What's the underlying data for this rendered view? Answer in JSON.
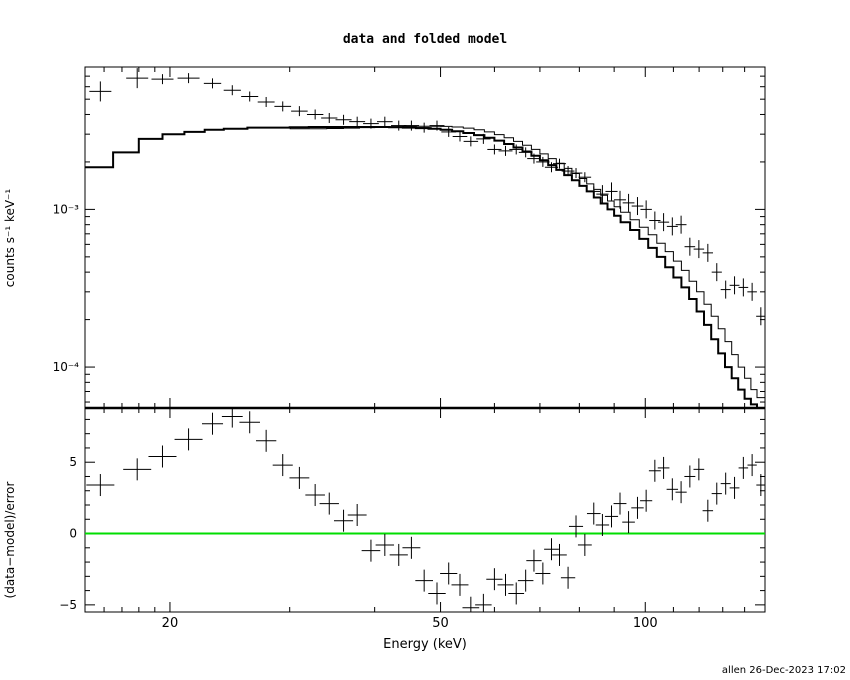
{
  "chart_data": [
    {
      "type": "line",
      "panel": "top",
      "title": "data and folded model",
      "ylabel": "counts s⁻¹ keV⁻¹",
      "yscale": "log",
      "xscale": "log",
      "xlim": [
        15,
        150
      ],
      "ylim": [
        5.5e-05,
        0.008
      ],
      "ytick_labels": [
        "10⁻³",
        "10⁻⁴"
      ],
      "ytick_values": [
        0.001,
        0.0001
      ],
      "data": {
        "x": [
          15.8,
          17.9,
          19.5,
          21.3,
          23.1,
          24.7,
          26.2,
          27.7,
          29.3,
          31.0,
          32.7,
          34.3,
          36.0,
          37.7,
          39.5,
          41.4,
          43.4,
          45.3,
          47.3,
          49.4,
          51.4,
          53.4,
          55.4,
          57.8,
          60.0,
          62.3,
          64.6,
          66.7,
          68.6,
          70.7,
          72.8,
          74.8,
          77.0,
          79.1,
          81.5,
          84.0,
          86.5,
          89.2,
          91.8,
          94.5,
          97.4,
          100.3,
          103.3,
          106.4,
          109.6,
          112.9,
          116.3,
          119.9,
          123.6,
          127.4,
          131.3,
          135.3,
          139.4,
          143.6,
          147.9
        ],
        "y": [
          0.0056,
          0.0068,
          0.0067,
          0.0068,
          0.0063,
          0.0057,
          0.0052,
          0.0048,
          0.0045,
          0.0042,
          0.004,
          0.0038,
          0.0037,
          0.0036,
          0.0035,
          0.0036,
          0.0034,
          0.0034,
          0.0033,
          0.0034,
          0.0031,
          0.0029,
          0.0027,
          0.0028,
          0.0024,
          0.00235,
          0.0024,
          0.0023,
          0.0021,
          0.002,
          0.00185,
          0.00195,
          0.00175,
          0.0017,
          0.0016,
          0.0013,
          0.00125,
          0.0013,
          0.00115,
          0.0011,
          0.00105,
          0.001,
          0.00085,
          0.00083,
          0.00078,
          0.0008,
          0.00058,
          0.00056,
          0.00053,
          0.0004,
          0.00031,
          0.00033,
          0.00032,
          0.0003,
          0.00021
        ]
      },
      "model_series": [
        {
          "style": "thick",
          "x": [
            15.0,
            16.5,
            18.0,
            19.5,
            21.0,
            22.5,
            24.0,
            26.0,
            28.0,
            30.0,
            32.0,
            34.0,
            36.0,
            38.0,
            40.0,
            42.0,
            44.0,
            46.0,
            48.0,
            50.0,
            52.0,
            54.0,
            56.0,
            58.0,
            60.0,
            62.0,
            64.0,
            66.0,
            68.0,
            70.0,
            72.0,
            74.0,
            76.0,
            78.0,
            80.0,
            82.0,
            84.0,
            86.0,
            88.0,
            90.0,
            92.0,
            95.0,
            98.0,
            101.0,
            104.0,
            107.0,
            110.0,
            113.0,
            116.0,
            119.0,
            122.0,
            125.0,
            128.0,
            131.0,
            134.0,
            137.0,
            140.0,
            143.0,
            146.0,
            150.0
          ],
          "y": [
            0.00185,
            0.0023,
            0.0028,
            0.003,
            0.0031,
            0.0032,
            0.00325,
            0.0033,
            0.0033,
            0.00332,
            0.00333,
            0.00333,
            0.00333,
            0.00333,
            0.00333,
            0.00332,
            0.0033,
            0.00328,
            0.00325,
            0.0032,
            0.00313,
            0.00305,
            0.00296,
            0.00285,
            0.00273,
            0.0026,
            0.00247,
            0.00233,
            0.00219,
            0.00205,
            0.00191,
            0.00178,
            0.00165,
            0.00153,
            0.00141,
            0.0013,
            0.00119,
            0.00109,
            0.001,
            0.00091,
            0.00083,
            0.00074,
            0.00065,
            0.00057,
            0.0005,
            0.00043,
            0.00037,
            0.00032,
            0.00027,
            0.000225,
            0.000185,
            0.00015,
            0.000122,
            0.0001,
            8.5e-05,
            7.2e-05,
            6.3e-05,
            5.8e-05,
            5.5e-05,
            5.2e-05
          ]
        },
        {
          "style": "thin",
          "x": [
            30.0,
            32.0,
            34.0,
            36.0,
            38.0,
            40.0,
            42.0,
            44.0,
            46.0,
            48.0,
            50.0,
            52.0,
            54.0,
            56.0,
            58.0,
            60.0,
            62.0,
            64.0,
            66.0,
            68.0,
            70.0,
            72.0,
            74.0,
            76.0,
            78.0,
            80.0,
            82.0,
            84.0,
            86.0,
            88.0,
            90.0,
            92.0,
            95.0,
            98.0,
            101.0,
            104.0,
            107.0,
            110.0,
            113.0,
            116.0,
            119.0,
            122.0,
            125.0,
            128.0,
            131.0,
            134.0,
            137.0,
            140.0,
            143.0,
            146.0,
            150.0
          ],
          "y": [
            0.00325,
            0.00325,
            0.00326,
            0.00328,
            0.0033,
            0.00333,
            0.00335,
            0.00336,
            0.00337,
            0.00337,
            0.00336,
            0.00333,
            0.00328,
            0.0032,
            0.0031,
            0.00298,
            0.00285,
            0.0027,
            0.00255,
            0.0024,
            0.00225,
            0.0021,
            0.00196,
            0.00182,
            0.00169,
            0.00157,
            0.00145,
            0.00134,
            0.00123,
            0.00113,
            0.00104,
            0.00096,
            0.00086,
            0.00077,
            0.00069,
            0.00061,
            0.00054,
            0.00047,
            0.00041,
            0.00035,
            0.0003,
            0.00025,
            0.00021,
            0.000175,
            0.000145,
            0.00012,
            0.0001,
            8.5e-05,
            7.2e-05,
            6.4e-05,
            5.8e-05
          ]
        }
      ]
    },
    {
      "type": "scatter",
      "panel": "bottom",
      "xlabel": "Energy (keV)",
      "ylabel": "(data−model)/error",
      "xscale": "log",
      "xlim": [
        15,
        150
      ],
      "ylim": [
        -5.5,
        8.8
      ],
      "xtick_labels": [
        "20",
        "50",
        "100"
      ],
      "xtick_values": [
        20,
        50,
        100
      ],
      "ytick_labels": [
        "5",
        "0",
        "−5"
      ],
      "ytick_values": [
        5,
        0,
        -5
      ],
      "zero_line_color": "#00dd00",
      "data": {
        "x": [
          15.8,
          17.9,
          19.5,
          21.3,
          23.1,
          24.7,
          26.2,
          27.7,
          29.3,
          31.0,
          32.7,
          34.3,
          36.0,
          37.7,
          39.5,
          41.4,
          43.4,
          45.3,
          47.3,
          49.4,
          51.4,
          53.4,
          55.4,
          57.8,
          60.0,
          62.3,
          64.6,
          66.7,
          68.6,
          70.7,
          72.8,
          74.8,
          77.0,
          79.1,
          81.5,
          84.0,
          86.5,
          89.2,
          91.8,
          94.5,
          97.4,
          100.3,
          103.3,
          106.4,
          109.6,
          112.9,
          116.3,
          119.9,
          123.6,
          127.4,
          131.3,
          135.3,
          139.4,
          143.6,
          147.9
        ],
        "y": [
          3.4,
          4.5,
          5.4,
          6.6,
          7.7,
          8.2,
          7.8,
          6.5,
          4.8,
          3.9,
          2.7,
          2.1,
          0.9,
          1.3,
          -1.2,
          -0.8,
          -1.5,
          -1.0,
          -3.3,
          -4.2,
          -2.8,
          -3.6,
          -5.2,
          -5.0,
          -3.2,
          -3.6,
          -4.2,
          -3.3,
          -1.9,
          -2.8,
          -1.1,
          -1.5,
          -3.1,
          0.5,
          -0.8,
          1.4,
          0.6,
          1.2,
          2.1,
          0.8,
          1.8,
          2.3,
          4.4,
          4.6,
          3.1,
          2.9,
          4.0,
          4.5,
          1.6,
          2.8,
          3.5,
          3.2,
          4.6,
          4.8,
          3.4
        ]
      }
    }
  ],
  "footer": {
    "stamp": "allen 26-Dec-2023 17:02"
  }
}
